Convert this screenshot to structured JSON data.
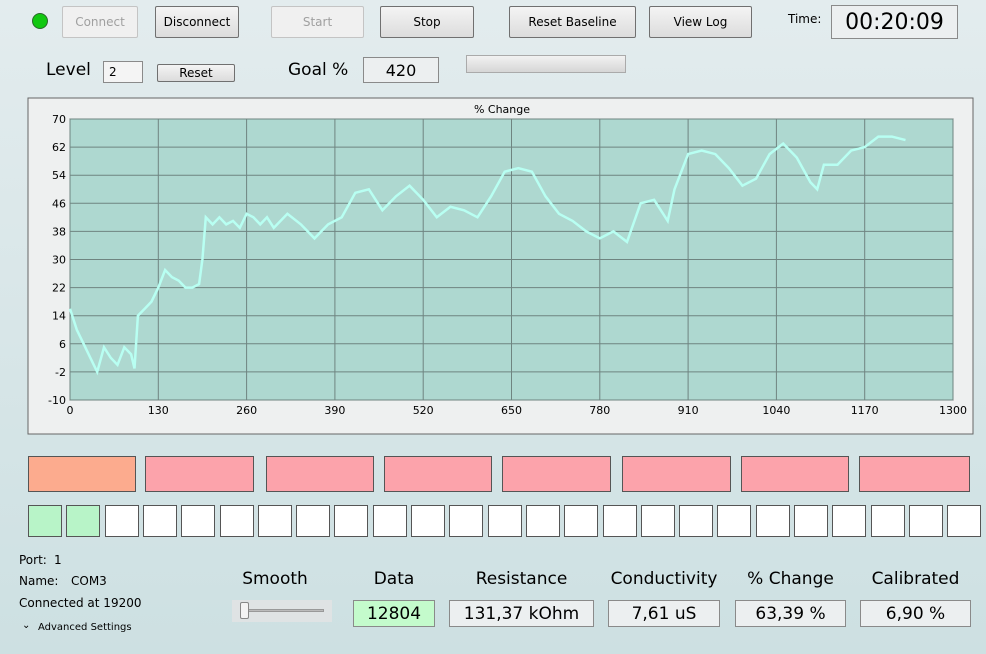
{
  "toolbar": {
    "buttons": [
      "Connect",
      "Disconnect",
      "Start",
      "Stop",
      "Reset Baseline",
      "View Log"
    ],
    "time_label": "Time:",
    "time_value": "00:20:09"
  },
  "settings": {
    "level_label": "Level",
    "level_value": "2",
    "reset": "Reset",
    "goal_label": "Goal %",
    "goal_value": "420"
  },
  "chart_data": {
    "type": "line",
    "title": "% Change",
    "color": "#b8fff2",
    "grid": true,
    "x": [
      0,
      10,
      20,
      30,
      40,
      50,
      60,
      70,
      80,
      90,
      95,
      100,
      110,
      120,
      130,
      140,
      150,
      160,
      170,
      180,
      190,
      195,
      200,
      210,
      220,
      230,
      240,
      250,
      260,
      270,
      280,
      290,
      300,
      320,
      340,
      360,
      380,
      400,
      420,
      440,
      460,
      480,
      500,
      520,
      540,
      560,
      580,
      600,
      620,
      640,
      660,
      680,
      700,
      720,
      740,
      760,
      780,
      800,
      820,
      840,
      860,
      880,
      890,
      910,
      930,
      950,
      970,
      990,
      1010,
      1030,
      1050,
      1070,
      1090,
      1100,
      1110,
      1130,
      1150,
      1170,
      1190,
      1210,
      1230
    ],
    "values": [
      16,
      10,
      6,
      2,
      -2,
      5,
      2,
      0,
      5,
      3,
      -1,
      14,
      16,
      18,
      22,
      27,
      25,
      24,
      22,
      22,
      23,
      30,
      42,
      40,
      42,
      40,
      41,
      39,
      43,
      42,
      40,
      42,
      39,
      43,
      40,
      36,
      40,
      42,
      49,
      50,
      44,
      48,
      51,
      47,
      42,
      45,
      44,
      42,
      48,
      55,
      56,
      55,
      48,
      43,
      41,
      38,
      36,
      38,
      35,
      46,
      47,
      41,
      50,
      60,
      61,
      60,
      56,
      51,
      53,
      60,
      63,
      59,
      52,
      50,
      57,
      57,
      61,
      62,
      65,
      65,
      64
    ],
    "xlim": [
      0,
      1300
    ],
    "xticks": [
      0,
      130,
      260,
      390,
      520,
      650,
      780,
      910,
      1040,
      1170,
      1300
    ],
    "ylim": [
      -10,
      70
    ],
    "yticks": [
      -10,
      -2,
      6,
      14,
      22,
      30,
      38,
      46,
      54,
      62,
      70
    ]
  },
  "status": {
    "port_label": "Port:",
    "port_value": "1",
    "name_label": "Name:",
    "name_value": "COM3",
    "connection": "Connected at 19200",
    "advanced": "Advanced Settings"
  },
  "smooth_label": "Smooth",
  "readouts": [
    {
      "label": "Data",
      "value": "12804"
    },
    {
      "label": "Resistance",
      "value": "131,37 kOhm"
    },
    {
      "label": "Conductivity",
      "value": "7,61 uS"
    },
    {
      "label": "% Change",
      "value": "63,39 %"
    },
    {
      "label": "Calibrated",
      "value": "6,90 %"
    }
  ]
}
